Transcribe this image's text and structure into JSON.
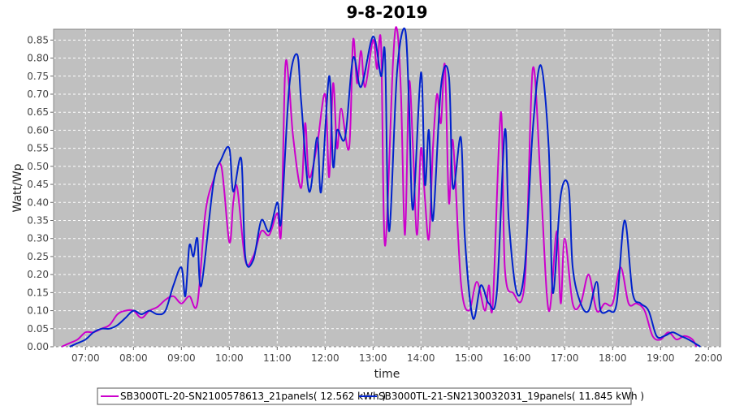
{
  "chart_data": {
    "type": "line",
    "title": "9-8-2019",
    "xlabel": "time",
    "ylabel": "Watt/Wp",
    "xlim": [
      "06:20",
      "20:15"
    ],
    "ylim": [
      0,
      0.88
    ],
    "x_ticks": [
      "07:00",
      "08:00",
      "09:00",
      "10:00",
      "11:00",
      "12:00",
      "13:00",
      "14:00",
      "15:00",
      "16:00",
      "17:00",
      "18:00",
      "19:00",
      "20:00"
    ],
    "y_ticks": [
      "0.00",
      "0.05",
      "0.10",
      "0.15",
      "0.20",
      "0.25",
      "0.30",
      "0.35",
      "0.40",
      "0.45",
      "0.50",
      "0.55",
      "0.60",
      "0.65",
      "0.70",
      "0.75",
      "0.80",
      "0.85"
    ],
    "grid": true,
    "legend_position": "bottom",
    "series": [
      {
        "name": "SB3000TL-20-SN2100578613_21panels( 12.562 kWh )",
        "color": "#cc00cc",
        "points": [
          [
            "06:30",
            0.0
          ],
          [
            "06:40",
            0.01
          ],
          [
            "06:50",
            0.02
          ],
          [
            "07:00",
            0.04
          ],
          [
            "07:10",
            0.04
          ],
          [
            "07:20",
            0.05
          ],
          [
            "07:30",
            0.06
          ],
          [
            "07:40",
            0.09
          ],
          [
            "07:50",
            0.1
          ],
          [
            "08:00",
            0.1
          ],
          [
            "08:10",
            0.08
          ],
          [
            "08:20",
            0.1
          ],
          [
            "08:30",
            0.11
          ],
          [
            "08:40",
            0.13
          ],
          [
            "08:50",
            0.14
          ],
          [
            "09:00",
            0.12
          ],
          [
            "09:10",
            0.14
          ],
          [
            "09:20",
            0.12
          ],
          [
            "09:30",
            0.37
          ],
          [
            "09:40",
            0.46
          ],
          [
            "09:50",
            0.5
          ],
          [
            "10:00",
            0.29
          ],
          [
            "10:05",
            0.4
          ],
          [
            "10:10",
            0.44
          ],
          [
            "10:20",
            0.24
          ],
          [
            "10:30",
            0.25
          ],
          [
            "10:40",
            0.32
          ],
          [
            "10:50",
            0.31
          ],
          [
            "11:00",
            0.37
          ],
          [
            "11:05",
            0.32
          ],
          [
            "11:10",
            0.77
          ],
          [
            "11:15",
            0.72
          ],
          [
            "11:20",
            0.58
          ],
          [
            "11:30",
            0.44
          ],
          [
            "11:35",
            0.62
          ],
          [
            "11:40",
            0.47
          ],
          [
            "11:50",
            0.56
          ],
          [
            "12:00",
            0.7
          ],
          [
            "12:05",
            0.47
          ],
          [
            "12:10",
            0.73
          ],
          [
            "12:15",
            0.55
          ],
          [
            "12:20",
            0.66
          ],
          [
            "12:30",
            0.55
          ],
          [
            "12:35",
            0.85
          ],
          [
            "12:40",
            0.73
          ],
          [
            "12:45",
            0.82
          ],
          [
            "12:50",
            0.72
          ],
          [
            "13:00",
            0.85
          ],
          [
            "13:05",
            0.77
          ],
          [
            "13:10",
            0.84
          ],
          [
            "13:15",
            0.28
          ],
          [
            "13:25",
            0.79
          ],
          [
            "13:30",
            0.88
          ],
          [
            "13:35",
            0.7
          ],
          [
            "13:40",
            0.31
          ],
          [
            "13:45",
            0.73
          ],
          [
            "13:50",
            0.55
          ],
          [
            "13:55",
            0.31
          ],
          [
            "14:00",
            0.55
          ],
          [
            "14:05",
            0.41
          ],
          [
            "14:10",
            0.3
          ],
          [
            "14:15",
            0.55
          ],
          [
            "14:20",
            0.7
          ],
          [
            "14:25",
            0.62
          ],
          [
            "14:30",
            0.78
          ],
          [
            "14:35",
            0.4
          ],
          [
            "14:40",
            0.57
          ],
          [
            "14:50",
            0.18
          ],
          [
            "15:00",
            0.1
          ],
          [
            "15:10",
            0.18
          ],
          [
            "15:20",
            0.1
          ],
          [
            "15:25",
            0.17
          ],
          [
            "15:30",
            0.12
          ],
          [
            "15:40",
            0.65
          ],
          [
            "15:45",
            0.22
          ],
          [
            "15:55",
            0.15
          ],
          [
            "16:10",
            0.18
          ],
          [
            "16:20",
            0.77
          ],
          [
            "16:30",
            0.45
          ],
          [
            "16:40",
            0.1
          ],
          [
            "16:50",
            0.32
          ],
          [
            "16:55",
            0.12
          ],
          [
            "17:00",
            0.3
          ],
          [
            "17:10",
            0.12
          ],
          [
            "17:20",
            0.12
          ],
          [
            "17:30",
            0.2
          ],
          [
            "17:40",
            0.1
          ],
          [
            "17:50",
            0.12
          ],
          [
            "18:00",
            0.12
          ],
          [
            "18:10",
            0.22
          ],
          [
            "18:20",
            0.12
          ],
          [
            "18:30",
            0.12
          ],
          [
            "18:40",
            0.1
          ],
          [
            "18:50",
            0.03
          ],
          [
            "19:00",
            0.02
          ],
          [
            "19:10",
            0.04
          ],
          [
            "19:20",
            0.02
          ],
          [
            "19:30",
            0.03
          ],
          [
            "19:40",
            0.02
          ],
          [
            "19:45",
            0.0
          ]
        ]
      },
      {
        "name": "SB3000TL-21-SN2130032031_19panels( 11.845 kWh )",
        "color": "#0022cc",
        "points": [
          [
            "06:40",
            0.0
          ],
          [
            "06:50",
            0.01
          ],
          [
            "07:00",
            0.02
          ],
          [
            "07:10",
            0.04
          ],
          [
            "07:20",
            0.05
          ],
          [
            "07:30",
            0.05
          ],
          [
            "07:40",
            0.06
          ],
          [
            "07:50",
            0.08
          ],
          [
            "08:00",
            0.1
          ],
          [
            "08:10",
            0.09
          ],
          [
            "08:20",
            0.1
          ],
          [
            "08:30",
            0.09
          ],
          [
            "08:40",
            0.1
          ],
          [
            "08:50",
            0.17
          ],
          [
            "09:00",
            0.22
          ],
          [
            "09:05",
            0.14
          ],
          [
            "09:10",
            0.28
          ],
          [
            "09:15",
            0.25
          ],
          [
            "09:20",
            0.3
          ],
          [
            "09:25",
            0.17
          ],
          [
            "09:40",
            0.45
          ],
          [
            "09:50",
            0.52
          ],
          [
            "10:00",
            0.55
          ],
          [
            "10:05",
            0.43
          ],
          [
            "10:15",
            0.52
          ],
          [
            "10:20",
            0.25
          ],
          [
            "10:30",
            0.24
          ],
          [
            "10:40",
            0.35
          ],
          [
            "10:50",
            0.32
          ],
          [
            "11:00",
            0.4
          ],
          [
            "11:05",
            0.35
          ],
          [
            "11:15",
            0.72
          ],
          [
            "11:25",
            0.81
          ],
          [
            "11:30",
            0.68
          ],
          [
            "11:40",
            0.43
          ],
          [
            "11:50",
            0.58
          ],
          [
            "11:55",
            0.43
          ],
          [
            "12:05",
            0.75
          ],
          [
            "12:10",
            0.5
          ],
          [
            "12:15",
            0.6
          ],
          [
            "12:25",
            0.58
          ],
          [
            "12:35",
            0.8
          ],
          [
            "12:45",
            0.72
          ],
          [
            "13:00",
            0.86
          ],
          [
            "13:10",
            0.75
          ],
          [
            "13:15",
            0.81
          ],
          [
            "13:20",
            0.32
          ],
          [
            "13:30",
            0.76
          ],
          [
            "13:40",
            0.88
          ],
          [
            "13:45",
            0.68
          ],
          [
            "13:50",
            0.38
          ],
          [
            "14:00",
            0.76
          ],
          [
            "14:05",
            0.45
          ],
          [
            "14:10",
            0.6
          ],
          [
            "14:15",
            0.35
          ],
          [
            "14:25",
            0.72
          ],
          [
            "14:35",
            0.75
          ],
          [
            "14:40",
            0.44
          ],
          [
            "14:50",
            0.58
          ],
          [
            "14:55",
            0.3
          ],
          [
            "15:05",
            0.08
          ],
          [
            "15:15",
            0.17
          ],
          [
            "15:25",
            0.12
          ],
          [
            "15:35",
            0.15
          ],
          [
            "15:45",
            0.6
          ],
          [
            "15:50",
            0.35
          ],
          [
            "16:00",
            0.15
          ],
          [
            "16:10",
            0.22
          ],
          [
            "16:20",
            0.6
          ],
          [
            "16:30",
            0.78
          ],
          [
            "16:40",
            0.55
          ],
          [
            "16:45",
            0.15
          ],
          [
            "16:55",
            0.42
          ],
          [
            "17:05",
            0.44
          ],
          [
            "17:10",
            0.22
          ],
          [
            "17:20",
            0.12
          ],
          [
            "17:30",
            0.1
          ],
          [
            "17:40",
            0.18
          ],
          [
            "17:45",
            0.1
          ],
          [
            "17:55",
            0.1
          ],
          [
            "18:05",
            0.12
          ],
          [
            "18:15",
            0.35
          ],
          [
            "18:25",
            0.15
          ],
          [
            "18:35",
            0.12
          ],
          [
            "18:45",
            0.1
          ],
          [
            "18:55",
            0.03
          ],
          [
            "19:05",
            0.03
          ],
          [
            "19:15",
            0.04
          ],
          [
            "19:25",
            0.03
          ],
          [
            "19:35",
            0.02
          ],
          [
            "19:50",
            0.0
          ]
        ]
      }
    ]
  }
}
